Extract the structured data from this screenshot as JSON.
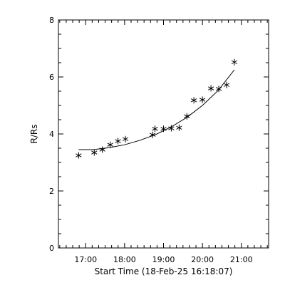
{
  "chart_data": {
    "type": "scatter",
    "title": "",
    "xlabel": "Start Time (18-Feb-25 16:18:07)",
    "ylabel": "R/Rs",
    "x_unit": "hours of day 18-Feb-25",
    "xlim": [
      16.3,
      21.7
    ],
    "ylim": [
      0,
      8
    ],
    "x_ticks": [
      17,
      18,
      19,
      20,
      21
    ],
    "x_tick_labels": [
      "17:00",
      "18:00",
      "19:00",
      "20:00",
      "21:00"
    ],
    "y_ticks": [
      0,
      2,
      4,
      6,
      8
    ],
    "y_tick_labels": [
      "0",
      "2",
      "4",
      "6",
      "8"
    ],
    "grid": false,
    "series": [
      {
        "kind": "points",
        "marker": "asterisk",
        "color": "#000000",
        "x": [
          16.82,
          17.22,
          17.43,
          17.63,
          17.83,
          18.02,
          18.72,
          18.78,
          19.0,
          19.2,
          19.4,
          19.6,
          19.78,
          20.0,
          20.22,
          20.42,
          20.62,
          20.82
        ],
        "y": [
          3.25,
          3.35,
          3.45,
          3.62,
          3.75,
          3.82,
          3.97,
          4.18,
          4.18,
          4.2,
          4.22,
          4.62,
          5.18,
          5.2,
          5.6,
          5.58,
          5.72,
          6.52
        ]
      },
      {
        "kind": "line",
        "style": "fit",
        "color": "#000000",
        "x": [
          16.82,
          17.2,
          17.6,
          18.0,
          18.4,
          18.8,
          19.2,
          19.6,
          20.0,
          20.4,
          20.82
        ],
        "y": [
          3.45,
          3.45,
          3.52,
          3.62,
          3.78,
          3.98,
          4.25,
          4.58,
          5.0,
          5.52,
          6.25
        ]
      }
    ]
  }
}
